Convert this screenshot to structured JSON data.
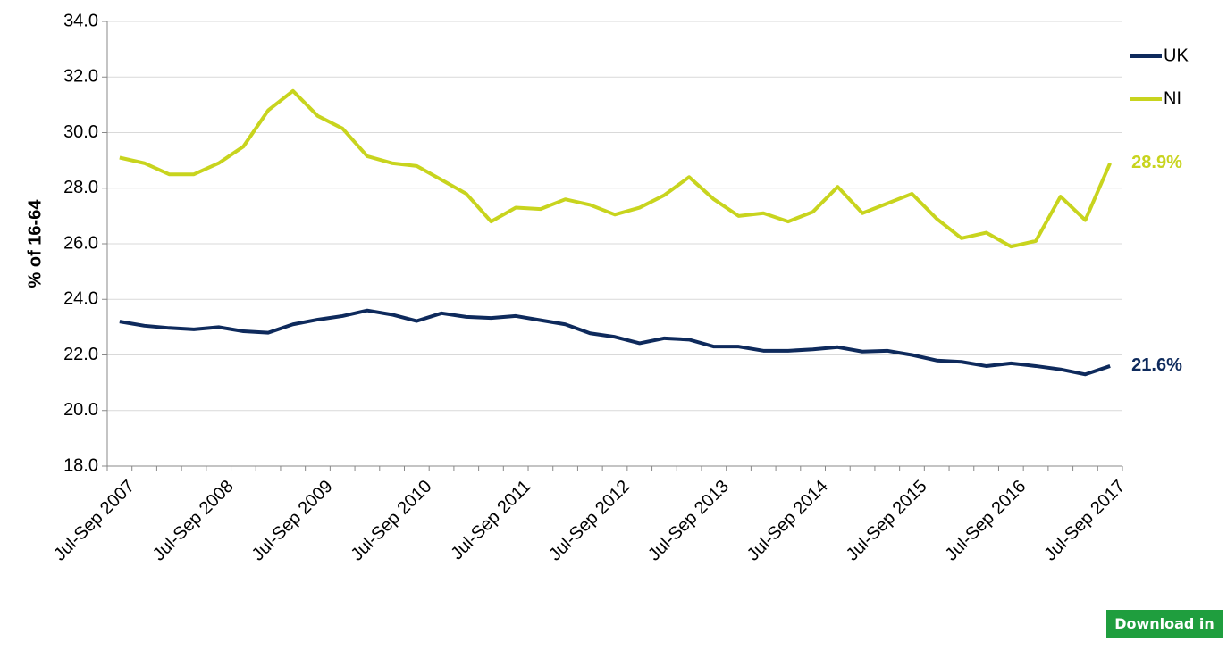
{
  "chart_data": {
    "type": "line",
    "y_label": "% of 16-64",
    "categories": [
      "Jul-Sep 2007",
      null,
      null,
      null,
      "Jul-Sep 2008",
      null,
      null,
      null,
      "Jul-Sep 2009",
      null,
      null,
      null,
      "Jul-Sep 2010",
      null,
      null,
      null,
      "Jul-Sep 2011",
      null,
      null,
      null,
      "Jul-Sep 2012",
      null,
      null,
      null,
      "Jul-Sep 2013",
      null,
      null,
      null,
      "Jul-Sep 2014",
      null,
      null,
      null,
      "Jul-Sep 2015",
      null,
      null,
      null,
      "Jul-Sep 2016",
      null,
      null,
      null,
      "Jul-Sep 2017"
    ],
    "series": [
      {
        "name": "UK",
        "color": "#0e2a5c",
        "values": [
          23.2,
          23.05,
          22.97,
          22.92,
          23.0,
          22.85,
          22.8,
          23.1,
          23.27,
          23.4,
          23.6,
          23.45,
          23.22,
          23.5,
          23.37,
          23.33,
          23.4,
          23.25,
          23.1,
          22.78,
          22.65,
          22.42,
          22.6,
          22.55,
          22.3,
          22.3,
          22.15,
          22.15,
          22.2,
          22.28,
          22.12,
          22.15,
          22.0,
          21.8,
          21.75,
          21.6,
          21.7,
          21.6,
          21.48,
          21.3,
          21.6
        ],
        "value_labels": [
          null,
          null,
          null,
          null,
          null,
          null,
          null,
          null,
          null,
          null,
          null,
          null,
          null,
          null,
          null,
          null,
          null,
          null,
          null,
          null,
          null,
          null,
          null,
          null,
          null,
          null,
          null,
          null,
          null,
          null,
          null,
          null,
          null,
          null,
          null,
          null,
          null,
          null,
          null,
          null,
          "21.6%"
        ]
      },
      {
        "name": "NI",
        "color": "#c8d41e",
        "values": [
          29.1,
          28.9,
          28.5,
          28.5,
          28.9,
          29.5,
          30.8,
          31.5,
          30.6,
          30.15,
          29.15,
          28.9,
          28.8,
          28.3,
          27.8,
          26.8,
          27.3,
          27.25,
          27.6,
          27.4,
          27.05,
          27.3,
          27.75,
          28.4,
          27.6,
          27.0,
          27.1,
          26.8,
          27.15,
          28.05,
          27.1,
          27.45,
          27.8,
          26.9,
          26.2,
          26.4,
          25.9,
          26.1,
          27.7,
          26.85,
          28.9
        ],
        "value_labels": [
          null,
          null,
          null,
          null,
          null,
          null,
          null,
          null,
          null,
          null,
          null,
          null,
          null,
          null,
          null,
          null,
          null,
          null,
          null,
          null,
          null,
          null,
          null,
          null,
          null,
          null,
          null,
          null,
          null,
          null,
          null,
          null,
          null,
          null,
          null,
          null,
          null,
          null,
          null,
          null,
          "28.9%"
        ]
      }
    ],
    "ylim": [
      18,
      34
    ],
    "yticks": [
      {
        "value": 18,
        "label": "18.0"
      },
      {
        "value": 20,
        "label": "20.0"
      },
      {
        "value": 22,
        "label": "22.0"
      },
      {
        "value": 24,
        "label": "24.0"
      },
      {
        "value": 26,
        "label": "26.0"
      },
      {
        "value": 28,
        "label": "28.0"
      },
      {
        "value": 30,
        "label": "30.0"
      },
      {
        "value": 32,
        "label": "32.0"
      },
      {
        "value": 34,
        "label": "34.0"
      }
    ],
    "grid": true,
    "legend": "top-right"
  },
  "download_button": "Download in excel"
}
